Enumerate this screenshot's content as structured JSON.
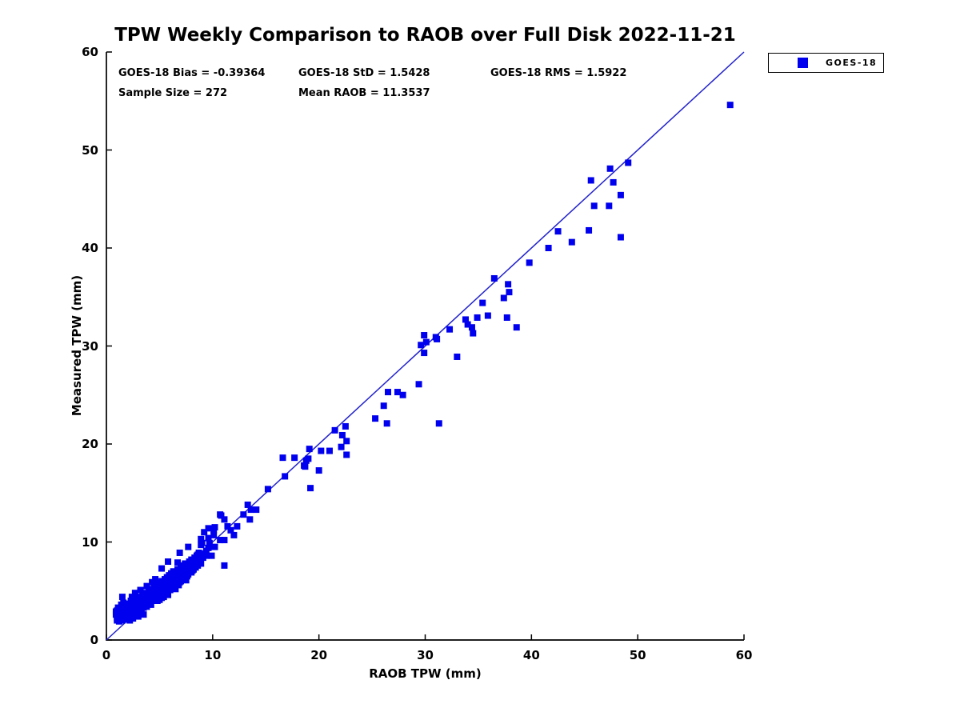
{
  "chart": {
    "title": "TPW Weekly Comparison to RAOB over Full Disk 2022-11-21",
    "stats": {
      "bias": "GOES-18 Bias = -0.39364",
      "std": "GOES-18 StD = 1.5428",
      "rms": "GOES-18 RMS = 1.5922",
      "sample_size": "Sample Size = 272",
      "mean_raob": "Mean RAOB = 11.3537"
    },
    "xlabel": "RAOB TPW (mm)",
    "ylabel": "Measured TPW (mm)",
    "legend_label": "GOES-18"
  },
  "chart_data": {
    "type": "scatter",
    "title": "TPW Weekly Comparison to RAOB over Full Disk 2022-11-21",
    "xlabel": "RAOB TPW (mm)",
    "ylabel": "Measured TPW (mm)",
    "xlim": [
      0,
      60
    ],
    "ylim": [
      0,
      60
    ],
    "xticks": [
      0,
      10,
      20,
      30,
      40,
      50,
      60
    ],
    "yticks": [
      0,
      10,
      20,
      30,
      40,
      50,
      60
    ],
    "grid": false,
    "legend_position": "top-right-outside",
    "marker": "square",
    "marker_color": "#0000EE",
    "line_color": "#2222CC",
    "reference_line": {
      "type": "identity",
      "from": [
        0,
        0
      ],
      "to": [
        60,
        60
      ]
    },
    "statistics": {
      "bias": -0.39364,
      "std": 1.5428,
      "rms": 1.5922,
      "sample_size": 272,
      "mean_raob": 11.3537
    },
    "series": [
      {
        "name": "GOES-18",
        "points": [
          [
            0.9,
            2.6
          ],
          [
            1.0,
            2.2
          ],
          [
            1.0,
            3.0
          ],
          [
            1.1,
            2.5
          ],
          [
            1.1,
            3.3
          ],
          [
            1.2,
            2.8
          ],
          [
            1.2,
            2.1
          ],
          [
            1.3,
            3.1
          ],
          [
            1.3,
            2.4
          ],
          [
            1.4,
            2.9
          ],
          [
            1.4,
            3.6
          ],
          [
            1.5,
            2.6
          ],
          [
            1.5,
            3.2
          ],
          [
            1.6,
            2.3
          ],
          [
            1.6,
            3.8
          ],
          [
            1.7,
            2.9
          ],
          [
            1.7,
            3.4
          ],
          [
            1.8,
            2.5
          ],
          [
            1.8,
            3.1
          ],
          [
            1.9,
            3.7
          ],
          [
            1.9,
            2.8
          ],
          [
            2.0,
            2.3
          ],
          [
            2.0,
            3.3
          ],
          [
            2.1,
            2.9
          ],
          [
            2.1,
            3.6
          ],
          [
            2.2,
            2.5
          ],
          [
            2.2,
            3.2
          ],
          [
            2.3,
            2.8
          ],
          [
            2.3,
            4.0
          ],
          [
            2.4,
            3.4
          ],
          [
            2.4,
            2.6
          ],
          [
            2.5,
            3.0
          ],
          [
            2.5,
            3.9
          ],
          [
            2.6,
            2.7
          ],
          [
            2.6,
            3.5
          ],
          [
            2.7,
            3.1
          ],
          [
            2.7,
            4.2
          ],
          [
            2.8,
            2.9
          ],
          [
            2.8,
            3.7
          ],
          [
            2.9,
            3.3
          ],
          [
            2.9,
            4.4
          ],
          [
            3.0,
            2.8
          ],
          [
            3.0,
            3.9
          ],
          [
            3.1,
            3.3
          ],
          [
            3.1,
            4.1
          ],
          [
            3.2,
            2.9
          ],
          [
            3.2,
            3.6
          ],
          [
            3.3,
            4.3
          ],
          [
            3.3,
            3.1
          ],
          [
            3.4,
            3.8
          ],
          [
            3.4,
            4.6
          ],
          [
            3.5,
            3.3
          ],
          [
            3.5,
            4.1
          ],
          [
            3.6,
            3.6
          ],
          [
            3.6,
            4.4
          ],
          [
            3.7,
            3.9
          ],
          [
            3.7,
            4.8
          ],
          [
            3.8,
            3.4
          ],
          [
            3.8,
            4.2
          ],
          [
            3.9,
            4.6
          ],
          [
            3.9,
            3.7
          ],
          [
            4.0,
            4.1
          ],
          [
            4.0,
            5.0
          ],
          [
            4.1,
            3.8
          ],
          [
            4.1,
            4.5
          ],
          [
            4.2,
            4.9
          ],
          [
            4.2,
            3.6
          ],
          [
            4.3,
            4.3
          ],
          [
            4.3,
            5.2
          ],
          [
            4.4,
            4.0
          ],
          [
            4.4,
            4.7
          ],
          [
            4.5,
            5.4
          ],
          [
            4.5,
            4.2
          ],
          [
            4.6,
            4.5
          ],
          [
            4.6,
            5.1
          ],
          [
            4.7,
            4.2
          ],
          [
            4.7,
            5.6
          ],
          [
            4.8,
            4.8
          ],
          [
            4.8,
            4.0
          ],
          [
            4.9,
            5.3
          ],
          [
            4.9,
            4.5
          ],
          [
            5.0,
            5.0
          ],
          [
            5.0,
            5.8
          ],
          [
            5.1,
            4.6
          ],
          [
            5.1,
            5.4
          ],
          [
            5.2,
            4.3
          ],
          [
            5.2,
            6.0
          ],
          [
            5.3,
            5.1
          ],
          [
            5.3,
            4.7
          ],
          [
            5.4,
            5.6
          ],
          [
            5.4,
            4.4
          ],
          [
            5.5,
            5.2
          ],
          [
            5.5,
            6.2
          ],
          [
            5.6,
            4.9
          ],
          [
            5.6,
            5.7
          ],
          [
            5.7,
            5.3
          ],
          [
            5.7,
            6.4
          ],
          [
            5.8,
            4.6
          ],
          [
            5.8,
            5.9
          ],
          [
            5.9,
            5.5
          ],
          [
            5.9,
            6.6
          ],
          [
            6.0,
            5.1
          ],
          [
            6.0,
            6.1
          ],
          [
            6.1,
            5.7
          ],
          [
            6.1,
            6.8
          ],
          [
            6.2,
            5.3
          ],
          [
            6.2,
            6.3
          ],
          [
            6.3,
            5.9
          ],
          [
            6.3,
            7.0
          ],
          [
            6.4,
            5.5
          ],
          [
            6.4,
            6.5
          ],
          [
            6.5,
            6.0
          ],
          [
            6.5,
            5.2
          ],
          [
            6.6,
            6.7
          ],
          [
            6.6,
            5.8
          ],
          [
            6.7,
            6.2
          ],
          [
            6.7,
            7.2
          ],
          [
            6.8,
            5.6
          ],
          [
            6.8,
            6.9
          ],
          [
            6.9,
            6.4
          ],
          [
            7.0,
            7.4
          ],
          [
            7.0,
            6.0
          ],
          [
            7.1,
            6.6
          ],
          [
            7.1,
            7.0
          ],
          [
            7.2,
            6.2
          ],
          [
            7.2,
            7.6
          ],
          [
            7.3,
            6.8
          ],
          [
            7.4,
            6.4
          ],
          [
            7.4,
            7.8
          ],
          [
            7.5,
            7.0
          ],
          [
            7.5,
            6.1
          ],
          [
            7.6,
            7.3
          ],
          [
            7.7,
            6.7
          ],
          [
            7.8,
            8.0
          ],
          [
            7.8,
            7.1
          ],
          [
            7.9,
            7.5
          ],
          [
            8.0,
            6.9
          ],
          [
            8.0,
            8.2
          ],
          [
            8.1,
            7.7
          ],
          [
            8.2,
            7.2
          ],
          [
            8.3,
            8.4
          ],
          [
            8.3,
            7.9
          ],
          [
            8.4,
            7.4
          ],
          [
            8.5,
            8.6
          ],
          [
            8.5,
            8.1
          ],
          [
            8.6,
            7.6
          ],
          [
            8.7,
            8.9
          ],
          [
            8.8,
            8.3
          ],
          [
            8.9,
            7.8
          ],
          [
            9.0,
            8.8
          ],
          [
            9.1,
            8.4
          ],
          [
            1.0,
            2.0
          ],
          [
            1.5,
            2.0
          ],
          [
            2.0,
            2.1
          ],
          [
            2.5,
            2.2
          ],
          [
            3.0,
            2.4
          ],
          [
            3.5,
            2.6
          ],
          [
            2.2,
            2.0
          ],
          [
            1.2,
            1.9
          ],
          [
            1.5,
            4.4
          ],
          [
            2.7,
            4.8
          ],
          [
            3.2,
            5.1
          ],
          [
            3.8,
            5.5
          ],
          [
            4.3,
            5.9
          ],
          [
            0.9,
            2.9
          ],
          [
            1.1,
            2.0
          ],
          [
            2.4,
            4.4
          ],
          [
            4.6,
            6.2
          ],
          [
            5.0,
            4.1
          ],
          [
            6.9,
            5.9
          ],
          [
            7.6,
            6.5
          ],
          [
            5.2,
            7.3
          ],
          [
            5.8,
            8.0
          ],
          [
            6.7,
            7.9
          ],
          [
            6.9,
            8.9
          ],
          [
            7.3,
            7.2
          ],
          [
            7.7,
            9.5
          ],
          [
            8.1,
            7.1
          ],
          [
            8.6,
            8.7
          ],
          [
            8.7,
            7.9
          ],
          [
            8.9,
            9.7
          ],
          [
            8.9,
            10.3
          ],
          [
            9.0,
            9.9
          ],
          [
            9.2,
            11.0
          ],
          [
            9.4,
            8.6
          ],
          [
            9.4,
            9.1
          ],
          [
            9.6,
            9.4
          ],
          [
            9.6,
            10.4
          ],
          [
            9.6,
            11.4
          ],
          [
            9.7,
            9.9
          ],
          [
            9.9,
            8.6
          ],
          [
            10.1,
            10.7
          ],
          [
            10.1,
            11.2
          ],
          [
            10.2,
            9.5
          ],
          [
            10.2,
            11.5
          ],
          [
            10.7,
            10.2
          ],
          [
            10.7,
            12.8
          ],
          [
            10.8,
            12.7
          ],
          [
            11.1,
            7.6
          ],
          [
            11.1,
            10.2
          ],
          [
            11.1,
            12.3
          ],
          [
            11.4,
            11.6
          ],
          [
            11.7,
            11.2
          ],
          [
            12.0,
            10.7
          ],
          [
            12.3,
            11.6
          ],
          [
            12.9,
            12.8
          ],
          [
            13.3,
            13.8
          ],
          [
            13.5,
            12.3
          ],
          [
            13.6,
            13.3
          ],
          [
            14.1,
            13.3
          ],
          [
            15.2,
            15.4
          ],
          [
            16.6,
            18.6
          ],
          [
            16.8,
            16.7
          ],
          [
            17.7,
            18.6
          ],
          [
            18.6,
            17.8
          ],
          [
            18.7,
            17.7
          ],
          [
            18.8,
            18.3
          ],
          [
            19.0,
            18.5
          ],
          [
            19.1,
            19.5
          ],
          [
            19.2,
            15.5
          ],
          [
            20.0,
            17.3
          ],
          [
            20.2,
            19.3
          ],
          [
            21.0,
            19.3
          ],
          [
            21.5,
            21.4
          ],
          [
            22.1,
            19.7
          ],
          [
            22.2,
            20.9
          ],
          [
            22.5,
            21.8
          ],
          [
            22.6,
            20.3
          ],
          [
            22.6,
            18.9
          ],
          [
            25.3,
            22.6
          ],
          [
            26.1,
            23.9
          ],
          [
            26.4,
            22.1
          ],
          [
            26.5,
            25.3
          ],
          [
            27.4,
            25.3
          ],
          [
            27.9,
            25.0
          ],
          [
            29.4,
            26.1
          ],
          [
            29.6,
            30.1
          ],
          [
            29.9,
            31.1
          ],
          [
            29.9,
            29.3
          ],
          [
            30.1,
            30.4
          ],
          [
            31.0,
            30.9
          ],
          [
            31.1,
            30.7
          ],
          [
            31.3,
            22.1
          ],
          [
            32.3,
            31.7
          ],
          [
            33.0,
            28.9
          ],
          [
            33.8,
            32.7
          ],
          [
            34.0,
            32.2
          ],
          [
            34.4,
            31.9
          ],
          [
            34.5,
            31.3
          ],
          [
            34.9,
            32.9
          ],
          [
            35.4,
            34.4
          ],
          [
            35.9,
            33.1
          ],
          [
            36.5,
            36.9
          ],
          [
            37.4,
            34.9
          ],
          [
            37.7,
            32.9
          ],
          [
            37.8,
            36.3
          ],
          [
            37.9,
            35.5
          ],
          [
            38.6,
            31.9
          ],
          [
            39.8,
            38.5
          ],
          [
            41.6,
            40.0
          ],
          [
            42.5,
            41.7
          ],
          [
            43.8,
            40.6
          ],
          [
            45.4,
            41.8
          ],
          [
            45.6,
            46.9
          ],
          [
            45.9,
            44.3
          ],
          [
            47.3,
            44.3
          ],
          [
            47.4,
            48.1
          ],
          [
            47.7,
            46.7
          ],
          [
            48.4,
            45.4
          ],
          [
            48.4,
            41.1
          ],
          [
            49.1,
            48.7
          ],
          [
            58.7,
            54.6
          ]
        ]
      }
    ]
  }
}
